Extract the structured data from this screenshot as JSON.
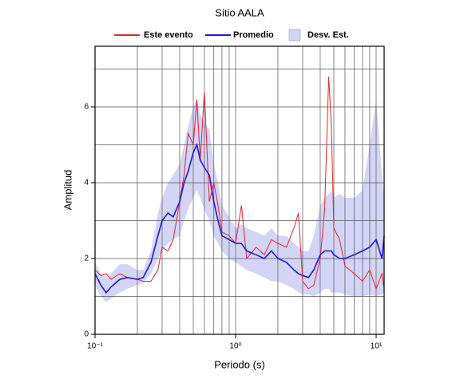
{
  "chart_data": {
    "type": "line",
    "title": "Sitio AALA",
    "x_label": "Periodo (s)",
    "y_label": "Amplitud",
    "log_x": true,
    "grid": true,
    "xlim": [
      0.1,
      11.4
    ],
    "ylim": [
      0,
      7.6
    ],
    "xticks": [
      {
        "value": 0.1,
        "label": "10⁻¹"
      },
      {
        "value": 1,
        "label": "10⁰"
      },
      {
        "value": 10,
        "label": "10¹"
      }
    ],
    "xgrid": [
      0.2,
      0.3,
      0.4,
      0.5,
      0.6,
      0.7,
      0.8,
      0.9,
      2,
      3,
      4,
      5,
      6,
      7,
      8,
      9
    ],
    "yticks": [
      0,
      2,
      4,
      6
    ],
    "ygrid": [
      1,
      2,
      3,
      4,
      5,
      6,
      7
    ],
    "x": [
      0.1,
      0.11,
      0.12,
      0.13,
      0.15,
      0.17,
      0.2,
      0.22,
      0.25,
      0.28,
      0.3,
      0.33,
      0.36,
      0.4,
      0.43,
      0.46,
      0.5,
      0.53,
      0.56,
      0.6,
      0.65,
      0.7,
      0.75,
      0.8,
      0.9,
      1.0,
      1.1,
      1.2,
      1.4,
      1.6,
      1.8,
      2.0,
      2.3,
      2.6,
      2.8,
      3.0,
      3.3,
      3.6,
      4.0,
      4.3,
      4.6,
      4.8,
      5.0,
      5.5,
      6,
      7,
      8,
      9,
      10,
      11,
      11.4
    ],
    "band": {
      "name": "Desv. Est.",
      "color": "#d4d4f7",
      "lower": [
        1.3,
        1.0,
        0.85,
        0.95,
        1.1,
        1.2,
        1.3,
        1.35,
        1.6,
        2.0,
        2.2,
        2.4,
        2.5,
        2.6,
        3.0,
        3.3,
        3.6,
        3.8,
        3.6,
        3.3,
        3.0,
        2.6,
        2.4,
        2.2,
        2.0,
        1.9,
        1.8,
        1.7,
        1.6,
        1.5,
        1.4,
        1.4,
        1.3,
        1.2,
        1.1,
        1.05,
        1.05,
        1.0,
        1.1,
        1.2,
        1.2,
        1.1,
        1.1,
        1.1,
        1.05,
        1.0,
        1.0,
        1.05,
        1.0,
        1.05,
        1.1
      ],
      "upper": [
        1.9,
        1.6,
        1.5,
        1.6,
        1.85,
        1.85,
        1.7,
        1.7,
        2.2,
        3.2,
        3.6,
        4.0,
        4.2,
        4.5,
        5.0,
        5.5,
        6.0,
        6.2,
        5.8,
        5.6,
        5.4,
        4.5,
        4.0,
        3.4,
        3.1,
        2.8,
        2.9,
        2.8,
        2.7,
        2.6,
        2.8,
        2.6,
        2.6,
        2.4,
        2.3,
        2.2,
        2.2,
        2.6,
        3.4,
        3.6,
        3.7,
        3.8,
        3.6,
        3.7,
        3.6,
        3.6,
        3.8,
        5.0,
        6.2,
        4.2,
        3.6
      ]
    },
    "series": [
      {
        "name": "Este evento",
        "color": "#e8232a",
        "values": [
          1.7,
          1.55,
          1.6,
          1.45,
          1.6,
          1.5,
          1.45,
          1.4,
          1.4,
          1.7,
          2.3,
          2.2,
          2.5,
          3.5,
          4.2,
          5.3,
          5.0,
          6.2,
          4.6,
          6.4,
          3.5,
          4.0,
          3.4,
          2.7,
          2.6,
          2.4,
          3.4,
          2.0,
          2.3,
          2.1,
          2.5,
          2.4,
          2.3,
          2.8,
          3.2,
          1.4,
          1.2,
          1.3,
          2.0,
          3.3,
          6.8,
          5.5,
          2.8,
          2.5,
          1.8,
          1.6,
          1.4,
          1.7,
          1.2,
          1.6,
          1.2
        ]
      },
      {
        "name": "Promedio",
        "color": "#1a1adb",
        "values": [
          1.6,
          1.3,
          1.1,
          1.25,
          1.45,
          1.5,
          1.45,
          1.5,
          1.9,
          2.6,
          3.0,
          3.2,
          3.1,
          3.5,
          4.0,
          4.3,
          4.8,
          5.0,
          4.6,
          4.4,
          4.2,
          3.5,
          3.0,
          2.6,
          2.5,
          2.4,
          2.4,
          2.2,
          2.1,
          2.0,
          2.2,
          2.0,
          1.9,
          1.7,
          1.6,
          1.55,
          1.5,
          1.7,
          2.1,
          2.2,
          2.2,
          2.2,
          2.1,
          2.0,
          2.0,
          2.1,
          2.2,
          2.3,
          2.5,
          2.0,
          2.6
        ]
      }
    ]
  }
}
